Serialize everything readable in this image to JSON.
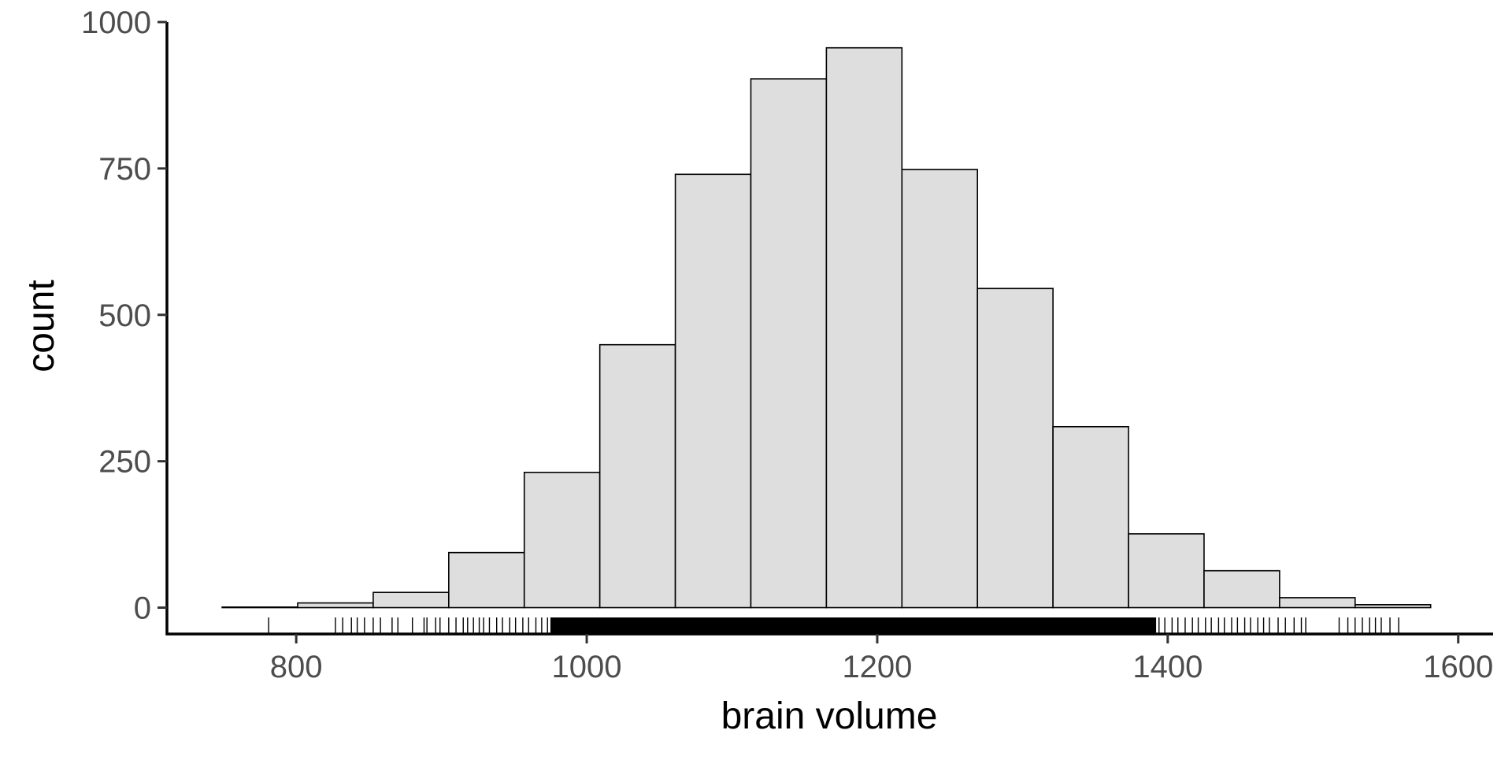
{
  "chart_data": {
    "type": "bar",
    "xlabel": "brain volume",
    "ylabel": "count",
    "xlim": [
      711,
      1624
    ],
    "ylim": [
      -45,
      1000
    ],
    "x_ticks": [
      800,
      1000,
      1200,
      1400,
      1600
    ],
    "y_ticks": [
      0,
      250,
      500,
      750,
      1000
    ],
    "bin_edges": [
      749,
      801,
      853,
      905,
      957,
      1009,
      1061,
      1113,
      1165,
      1217,
      1269,
      1321,
      1373,
      1425,
      1477,
      1529,
      1581
    ],
    "counts": [
      1,
      8,
      26,
      94,
      231,
      449,
      740,
      903,
      956,
      748,
      545,
      309,
      126,
      63,
      17,
      5
    ],
    "bar_fill": "#dedede",
    "bar_stroke": "#000000",
    "grid": false,
    "legend": "none",
    "rug_points": [
      781,
      827,
      832,
      838,
      842,
      847,
      853,
      858,
      866,
      870,
      880,
      888,
      890,
      896,
      899,
      905,
      910,
      915,
      918,
      922,
      926,
      929,
      933,
      938,
      942,
      947,
      951,
      956,
      960,
      965,
      969,
      973,
      1394,
      1398,
      1403,
      1407,
      1412,
      1417,
      1421,
      1426,
      1430,
      1435,
      1439,
      1444,
      1448,
      1453,
      1457,
      1462,
      1466,
      1470,
      1476,
      1481,
      1487,
      1492,
      1495,
      1518,
      1524,
      1529,
      1534,
      1539,
      1543,
      1547,
      1553,
      1559
    ],
    "rug_dense_range": [
      975,
      1392
    ]
  }
}
